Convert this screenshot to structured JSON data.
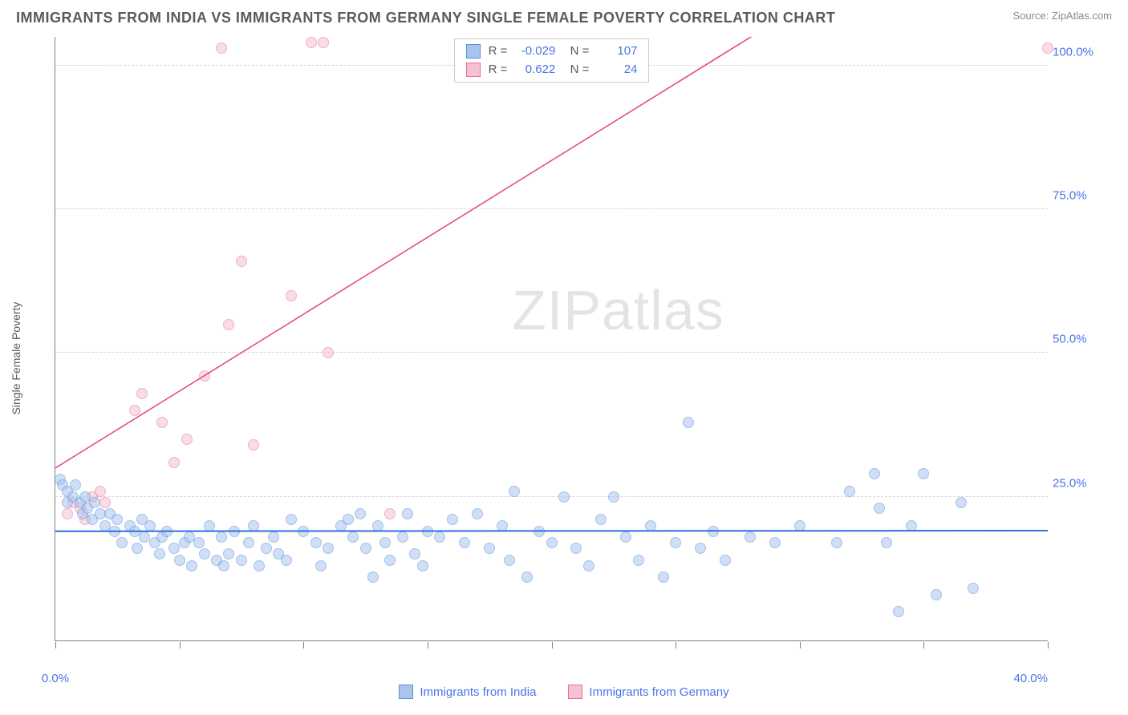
{
  "header": {
    "title": "IMMIGRANTS FROM INDIA VS IMMIGRANTS FROM GERMANY SINGLE FEMALE POVERTY CORRELATION CHART",
    "source": "Source: ZipAtlas.com"
  },
  "chart": {
    "type": "scatter",
    "watermark": "ZIPatlas",
    "ylabel": "Single Female Poverty",
    "x_axis": {
      "min": 0,
      "max": 40,
      "ticks_at": [
        0,
        5,
        10,
        15,
        20,
        25,
        30,
        35,
        40
      ],
      "end_labels": [
        "0.0%",
        "40.0%"
      ]
    },
    "y_axis": {
      "min": 0,
      "max": 105,
      "gridlines": [
        25,
        50,
        75,
        100
      ],
      "labels": [
        "25.0%",
        "50.0%",
        "75.0%",
        "100.0%"
      ]
    },
    "series": [
      {
        "name": "Immigrants from India",
        "color_fill": "#a9c5ee",
        "color_stroke": "#5b8fd6",
        "fill_opacity": 0.55,
        "marker_radius": 7,
        "R": "-0.029",
        "N": "107",
        "trend": {
          "color": "#2f6fe0",
          "width": 2,
          "y_at_x0": 19.0,
          "y_at_xmax": 19.1
        },
        "points": [
          [
            0.2,
            28
          ],
          [
            0.3,
            27
          ],
          [
            0.5,
            24
          ],
          [
            0.5,
            26
          ],
          [
            0.7,
            25
          ],
          [
            0.8,
            27
          ],
          [
            1.0,
            24
          ],
          [
            1.2,
            25
          ],
          [
            1.1,
            22
          ],
          [
            1.3,
            23
          ],
          [
            1.5,
            21
          ],
          [
            1.6,
            24
          ],
          [
            1.8,
            22
          ],
          [
            2.0,
            20
          ],
          [
            2.2,
            22
          ],
          [
            2.4,
            19
          ],
          [
            2.5,
            21
          ],
          [
            2.7,
            17
          ],
          [
            3.0,
            20
          ],
          [
            3.2,
            19
          ],
          [
            3.3,
            16
          ],
          [
            3.5,
            21
          ],
          [
            3.6,
            18
          ],
          [
            3.8,
            20
          ],
          [
            4.0,
            17
          ],
          [
            4.2,
            15
          ],
          [
            4.3,
            18
          ],
          [
            4.5,
            19
          ],
          [
            4.8,
            16
          ],
          [
            5.0,
            14
          ],
          [
            5.2,
            17
          ],
          [
            5.4,
            18
          ],
          [
            5.5,
            13
          ],
          [
            5.8,
            17
          ],
          [
            6.0,
            15
          ],
          [
            6.2,
            20
          ],
          [
            6.5,
            14
          ],
          [
            6.7,
            18
          ],
          [
            6.8,
            13
          ],
          [
            7.0,
            15
          ],
          [
            7.2,
            19
          ],
          [
            7.5,
            14
          ],
          [
            7.8,
            17
          ],
          [
            8.0,
            20
          ],
          [
            8.2,
            13
          ],
          [
            8.5,
            16
          ],
          [
            8.8,
            18
          ],
          [
            9.0,
            15
          ],
          [
            9.3,
            14
          ],
          [
            9.5,
            21
          ],
          [
            10.0,
            19
          ],
          [
            10.5,
            17
          ],
          [
            10.7,
            13
          ],
          [
            11.0,
            16
          ],
          [
            11.5,
            20
          ],
          [
            11.8,
            21
          ],
          [
            12.0,
            18
          ],
          [
            12.3,
            22
          ],
          [
            12.5,
            16
          ],
          [
            12.8,
            11
          ],
          [
            13.0,
            20
          ],
          [
            13.3,
            17
          ],
          [
            13.5,
            14
          ],
          [
            14.0,
            18
          ],
          [
            14.2,
            22
          ],
          [
            14.5,
            15
          ],
          [
            14.8,
            13
          ],
          [
            15.0,
            19
          ],
          [
            15.5,
            18
          ],
          [
            16.0,
            21
          ],
          [
            16.5,
            17
          ],
          [
            17.0,
            22
          ],
          [
            17.5,
            16
          ],
          [
            18.0,
            20
          ],
          [
            18.3,
            14
          ],
          [
            18.5,
            26
          ],
          [
            19.0,
            11
          ],
          [
            19.5,
            19
          ],
          [
            20.0,
            17
          ],
          [
            20.5,
            25
          ],
          [
            21.0,
            16
          ],
          [
            21.5,
            13
          ],
          [
            22.0,
            21
          ],
          [
            22.5,
            25
          ],
          [
            23.0,
            18
          ],
          [
            23.5,
            14
          ],
          [
            24.0,
            20
          ],
          [
            24.5,
            11
          ],
          [
            25.0,
            17
          ],
          [
            25.5,
            38
          ],
          [
            26.0,
            16
          ],
          [
            26.5,
            19
          ],
          [
            27.0,
            14
          ],
          [
            28.0,
            18
          ],
          [
            29.0,
            17
          ],
          [
            30.0,
            20
          ],
          [
            31.5,
            17
          ],
          [
            32.0,
            26
          ],
          [
            33.0,
            29
          ],
          [
            33.2,
            23
          ],
          [
            34.5,
            20
          ],
          [
            35.5,
            8
          ],
          [
            36.5,
            24
          ],
          [
            37.0,
            9
          ],
          [
            33.5,
            17
          ],
          [
            35.0,
            29
          ],
          [
            34.0,
            5
          ]
        ]
      },
      {
        "name": "Immigrants from Germany",
        "color_fill": "#f5c2d3",
        "color_stroke": "#e76c9a",
        "fill_opacity": 0.55,
        "marker_radius": 7,
        "R": "0.622",
        "N": "24",
        "trend": {
          "color": "#e83e8c",
          "width": 1.5,
          "y_at_x0": 30.0,
          "y_at_xmax": 137.0
        },
        "points": [
          [
            0.5,
            22
          ],
          [
            0.7,
            24
          ],
          [
            1.0,
            23
          ],
          [
            1.2,
            21
          ],
          [
            1.5,
            25
          ],
          [
            1.8,
            26
          ],
          [
            2.0,
            24
          ],
          [
            3.2,
            40
          ],
          [
            3.5,
            43
          ],
          [
            4.8,
            31
          ],
          [
            5.3,
            35
          ],
          [
            6.0,
            46
          ],
          [
            7.0,
            55
          ],
          [
            8.0,
            34
          ],
          [
            7.5,
            66
          ],
          [
            9.5,
            60
          ],
          [
            11.0,
            50
          ],
          [
            13.5,
            22
          ],
          [
            6.7,
            103
          ],
          [
            10.3,
            104
          ],
          [
            10.8,
            104
          ],
          [
            17.5,
            103
          ],
          [
            40.0,
            103
          ],
          [
            4.3,
            38
          ]
        ]
      }
    ]
  }
}
